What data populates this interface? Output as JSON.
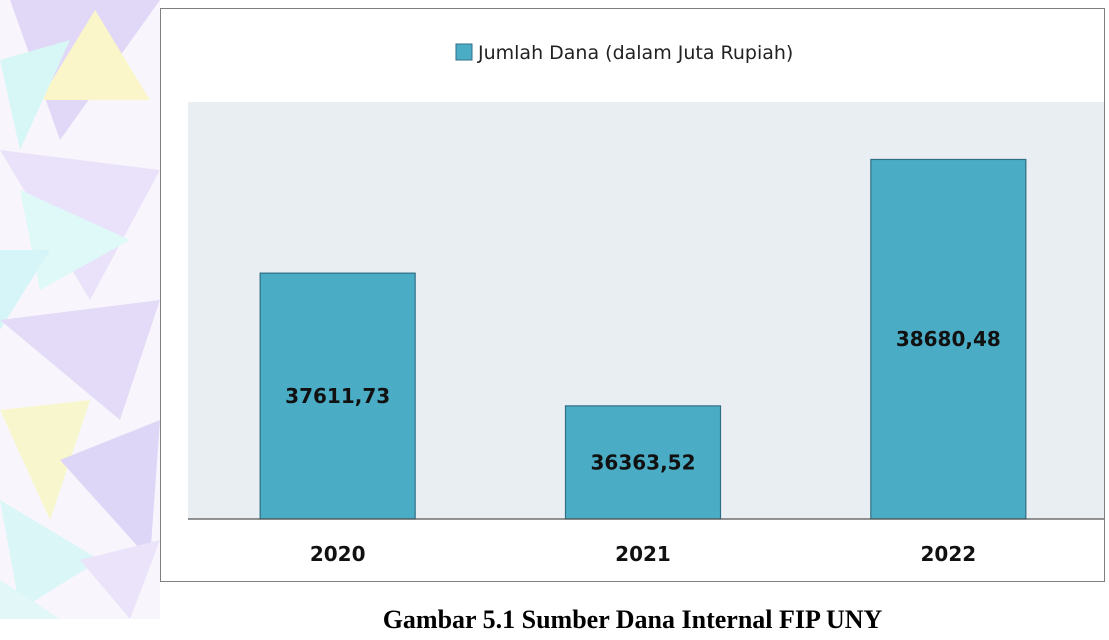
{
  "caption": "Gambar 5.1 Sumber Dana Internal FIP UNY",
  "chart_data": {
    "type": "bar",
    "categories": [
      "2020",
      "2021",
      "2022"
    ],
    "series": [
      {
        "name": "Jumlah Dana (dalam Juta Rupiah)",
        "values": [
          37611.73,
          36363.52,
          38680.48
        ],
        "labels": [
          "37611,73",
          "36363,52",
          "38680,48"
        ]
      }
    ],
    "ylim": [
      35300,
      38920
    ],
    "grid": false,
    "legend": "top-center",
    "colors": {
      "bar": "#4bacc6",
      "bar_border": "#2f6f85",
      "plot_background": "#e8eef2"
    }
  }
}
